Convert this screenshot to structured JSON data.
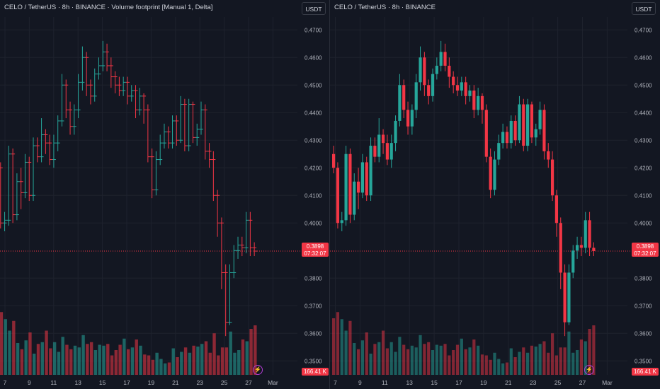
{
  "left_chart": {
    "title": "CELO / TetherUS · 8h · BINANCE · Volume footprint [Manual 1, Delta]",
    "currency_button": "USDT",
    "price_label": "0.3898",
    "countdown_label": "07:32:07",
    "volume_label": "166.41 K",
    "alert_icon": "lightning-icon"
  },
  "right_chart": {
    "title": "CELO / TetherUS · 8h · BINANCE",
    "currency_button": "USDT",
    "price_label": "0.3898",
    "countdown_label": "07:32:07",
    "volume_label": "166.41 K",
    "alert_icon": "lightning-icon"
  },
  "colors": {
    "background": "#131722",
    "up": "#26a69a",
    "down": "#f23645",
    "grid": "#1e222d"
  },
  "chart_data": [
    {
      "type": "candlestick",
      "title": "CELO / TetherUS · 8h · BINANCE · Volume footprint [Manual 1, Delta]",
      "y_ticks": [
        "0.4700",
        "0.4600",
        "0.4500",
        "0.4400",
        "0.4300",
        "0.4200",
        "0.4100",
        "0.4000",
        "0.3800",
        "0.3700",
        "0.3600",
        "0.3500"
      ],
      "ylim": [
        0.3445,
        0.4775
      ],
      "x_ticks": [
        "7",
        "9",
        "11",
        "13",
        "15",
        "17",
        "19",
        "21",
        "23",
        "25",
        "27",
        "Mar"
      ],
      "last_price": 0.3898
    },
    {
      "type": "candlestick",
      "title": "CELO / TetherUS · 8h · BINANCE",
      "y_ticks": [
        "0.4700",
        "0.4600",
        "0.4500",
        "0.4400",
        "0.4300",
        "0.4200",
        "0.4100",
        "0.4000",
        "0.3800",
        "0.3700",
        "0.3600",
        "0.3500"
      ],
      "ylim": [
        0.3445,
        0.4775
      ],
      "x_ticks": [
        "7",
        "9",
        "11",
        "13",
        "15",
        "17",
        "19",
        "21",
        "23",
        "25",
        "27",
        "Mar"
      ],
      "last_price": 0.3898,
      "candles": [
        [
          0.425,
          0.42,
          0.428,
          0.418
        ],
        [
          0.42,
          0.4,
          0.422,
          0.398
        ],
        [
          0.4,
          0.401,
          0.404,
          0.397
        ],
        [
          0.401,
          0.425,
          0.428,
          0.399
        ],
        [
          0.425,
          0.403,
          0.427,
          0.4
        ],
        [
          0.403,
          0.415,
          0.418,
          0.401
        ],
        [
          0.415,
          0.411,
          0.42,
          0.405
        ],
        [
          0.411,
          0.422,
          0.425,
          0.409
        ],
        [
          0.422,
          0.41,
          0.424,
          0.408
        ],
        [
          0.41,
          0.428,
          0.431,
          0.408
        ],
        [
          0.428,
          0.424,
          0.431,
          0.422
        ],
        [
          0.424,
          0.432,
          0.438,
          0.422
        ],
        [
          0.432,
          0.429,
          0.434,
          0.425
        ],
        [
          0.429,
          0.423,
          0.432,
          0.421
        ],
        [
          0.423,
          0.429,
          0.432,
          0.42
        ],
        [
          0.429,
          0.437,
          0.439,
          0.426
        ],
        [
          0.437,
          0.45,
          0.454,
          0.435
        ],
        [
          0.45,
          0.441,
          0.452,
          0.438
        ],
        [
          0.441,
          0.435,
          0.444,
          0.432
        ],
        [
          0.435,
          0.441,
          0.443,
          0.432
        ],
        [
          0.441,
          0.451,
          0.454,
          0.438
        ],
        [
          0.451,
          0.46,
          0.464,
          0.448
        ],
        [
          0.46,
          0.45,
          0.462,
          0.446
        ],
        [
          0.45,
          0.446,
          0.452,
          0.443
        ],
        [
          0.446,
          0.454,
          0.456,
          0.444
        ],
        [
          0.454,
          0.457,
          0.46,
          0.452
        ],
        [
          0.457,
          0.462,
          0.466,
          0.455
        ],
        [
          0.462,
          0.457,
          0.465,
          0.455
        ],
        [
          0.457,
          0.453,
          0.46,
          0.449
        ],
        [
          0.453,
          0.45,
          0.455,
          0.447
        ],
        [
          0.45,
          0.448,
          0.453,
          0.446
        ],
        [
          0.448,
          0.451,
          0.453,
          0.446
        ],
        [
          0.451,
          0.446,
          0.453,
          0.443
        ],
        [
          0.446,
          0.448,
          0.45,
          0.444
        ],
        [
          0.448,
          0.441,
          0.45,
          0.438
        ],
        [
          0.441,
          0.446,
          0.449,
          0.439
        ],
        [
          0.446,
          0.441,
          0.447,
          0.436
        ],
        [
          0.441,
          0.424,
          0.443,
          0.422
        ],
        [
          0.424,
          0.412,
          0.427,
          0.409
        ],
        [
          0.412,
          0.423,
          0.426,
          0.41
        ],
        [
          0.423,
          0.429,
          0.432,
          0.421
        ],
        [
          0.429,
          0.433,
          0.436,
          0.427
        ],
        [
          0.433,
          0.429,
          0.435,
          0.427
        ],
        [
          0.429,
          0.437,
          0.439,
          0.427
        ],
        [
          0.437,
          0.43,
          0.439,
          0.428
        ],
        [
          0.43,
          0.443,
          0.446,
          0.429
        ],
        [
          0.443,
          0.428,
          0.445,
          0.426
        ],
        [
          0.428,
          0.443,
          0.445,
          0.426
        ],
        [
          0.443,
          0.431,
          0.444,
          0.429
        ],
        [
          0.431,
          0.434,
          0.436,
          0.428
        ],
        [
          0.434,
          0.441,
          0.444,
          0.432
        ],
        [
          0.441,
          0.426,
          0.443,
          0.423
        ],
        [
          0.426,
          0.423,
          0.429,
          0.42
        ],
        [
          0.423,
          0.41,
          0.426,
          0.408
        ],
        [
          0.41,
          0.4,
          0.412,
          0.395
        ],
        [
          0.4,
          0.382,
          0.402,
          0.376
        ],
        [
          0.382,
          0.364,
          0.385,
          0.359
        ],
        [
          0.364,
          0.382,
          0.385,
          0.363
        ],
        [
          0.382,
          0.39,
          0.392,
          0.38
        ],
        [
          0.39,
          0.392,
          0.395,
          0.387
        ],
        [
          0.392,
          0.391,
          0.395,
          0.388
        ],
        [
          0.391,
          0.401,
          0.404,
          0.389
        ],
        [
          0.401,
          0.391,
          0.404,
          0.388
        ],
        [
          0.391,
          0.3898,
          0.393,
          0.388
        ]
      ],
      "volumes": [
        64,
        71,
        63,
        50,
        61,
        36,
        29,
        39,
        48,
        24,
        35,
        37,
        50,
        30,
        37,
        26,
        43,
        34,
        29,
        33,
        31,
        45,
        35,
        37,
        28,
        34,
        33,
        35,
        22,
        28,
        34,
        41,
        29,
        31,
        40,
        33,
        23,
        22,
        17,
        25,
        18,
        13,
        14,
        30,
        20,
        26,
        31,
        25,
        33,
        32,
        35,
        38,
        25,
        47,
        22,
        31,
        31,
        49,
        25,
        28,
        40,
        38,
        52,
        56
      ]
    }
  ]
}
